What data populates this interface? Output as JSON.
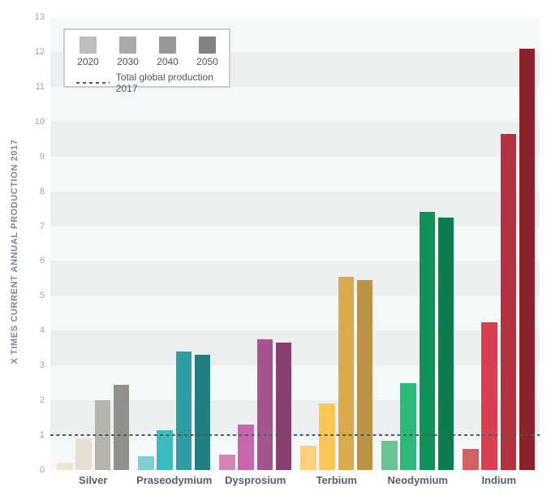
{
  "colors": {
    "band_light": "#f5f8f9",
    "band_dark": "#ebeff0",
    "tick_label": "#9aa1a8",
    "axis_title": "#7e8893",
    "category_label": "#565f69",
    "reference_dash": "#54585b",
    "legend_border": "#c9cdcf"
  },
  "chart_data": {
    "type": "bar",
    "title": "",
    "xlabel": "",
    "ylabel": "X TIMES CURRENT ANNUAL PRODUCTION 2017",
    "ylim": [
      0,
      13
    ],
    "y_ticks": [
      0,
      1,
      2,
      3,
      4,
      5,
      6,
      7,
      8,
      9,
      10,
      11,
      12,
      13
    ],
    "grid": "alternating horizontal bands, one unit tall",
    "legend_position": "top-left box",
    "series_labels": [
      "2020",
      "2030",
      "2040",
      "2050"
    ],
    "reference_line": {
      "value": 1,
      "label": "Total global production 2017"
    },
    "groups": [
      {
        "category": "Silver",
        "values": [
          0.2,
          0.9,
          2.0,
          2.45
        ],
        "colors": [
          "#ebe5d9",
          "#e6dfd1",
          "#b7b4ad",
          "#92908c"
        ]
      },
      {
        "category": "Praseodymium",
        "values": [
          0.4,
          1.15,
          3.4,
          3.3
        ],
        "colors": [
          "#7fd0d4",
          "#3abdbe",
          "#2d9fa2",
          "#217e82"
        ]
      },
      {
        "category": "Dysprosium",
        "values": [
          0.45,
          1.3,
          3.75,
          3.65
        ],
        "colors": [
          "#d383b6",
          "#c765ad",
          "#a5548c",
          "#873f70"
        ]
      },
      {
        "category": "Terbium",
        "values": [
          0.7,
          1.9,
          5.55,
          5.45
        ],
        "colors": [
          "#fcd07c",
          "#fcc758",
          "#d9ab4a",
          "#bb9344"
        ]
      },
      {
        "category": "Neodymium",
        "values": [
          0.85,
          2.5,
          7.4,
          7.25
        ],
        "colors": [
          "#6ac391",
          "#2eb877",
          "#0f9158",
          "#0c7b4e"
        ]
      },
      {
        "category": "Indium",
        "values": [
          0.6,
          4.25,
          9.65,
          12.1
        ],
        "colors": [
          "#d2625f",
          "#d8404f",
          "#b4323f",
          "#8b222c"
        ]
      }
    ],
    "legend": {
      "years": [
        "2020",
        "2030",
        "2040",
        "2050"
      ],
      "swatch_colors": [
        "#bcbec0",
        "#a8aaac",
        "#96989a",
        "#808285"
      ],
      "reference_label": "Total global production 2017"
    }
  }
}
